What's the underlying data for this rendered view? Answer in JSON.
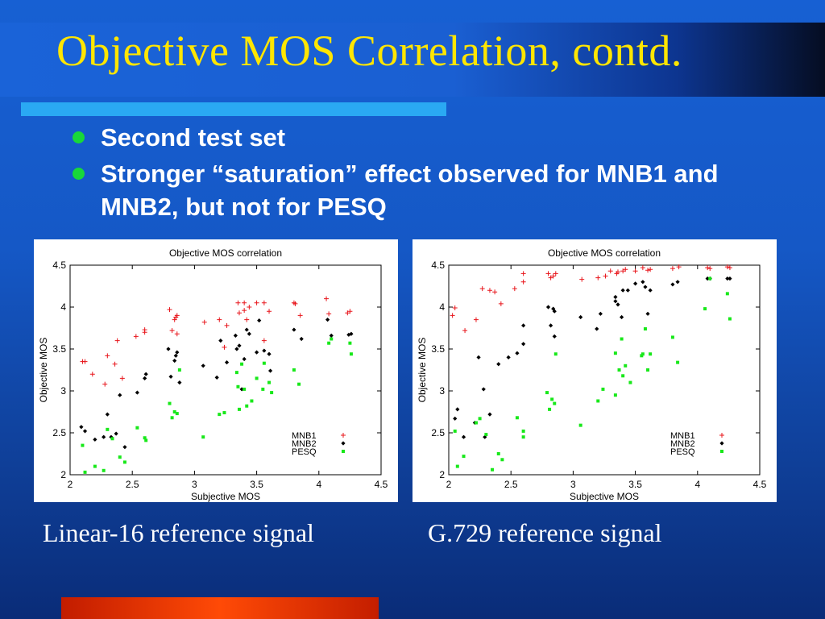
{
  "slide": {
    "title": "Objective MOS Correlation, contd.",
    "bullets": [
      "Second test set",
      "Stronger “saturation” effect observed for MNB1 and MNB2, but not for PESQ"
    ],
    "captions": [
      "Linear-16 reference signal",
      "G.729 reference signal"
    ],
    "colors": {
      "title": "#ffe600",
      "bullet_dot": "#18d83a",
      "rule": "#2aa9f3",
      "background": "#1558c6",
      "bottom_bar": "#ff4a06"
    }
  },
  "chart_data": [
    {
      "type": "scatter",
      "title": "Objective MOS correlation",
      "xlabel": "Subjective MOS",
      "ylabel": "Objective MOS",
      "xlim": [
        2,
        4.5
      ],
      "ylim": [
        2,
        4.5
      ],
      "xticks": [
        "2",
        "2.5",
        "3",
        "3.5",
        "4",
        "4.5"
      ],
      "yticks": [
        "2",
        "2.5",
        "3",
        "3.5",
        "4",
        "4.5"
      ],
      "legend_position": "bottom-right",
      "grid": false,
      "series": [
        {
          "name": "MNB1",
          "marker": "plus",
          "color": "#e8141a",
          "points": [
            [
              2.1,
              3.35
            ],
            [
              2.12,
              3.35
            ],
            [
              2.18,
              3.2
            ],
            [
              2.28,
              3.08
            ],
            [
              2.3,
              3.42
            ],
            [
              2.36,
              3.32
            ],
            [
              2.38,
              3.6
            ],
            [
              2.42,
              3.15
            ],
            [
              2.53,
              3.65
            ],
            [
              2.6,
              3.7
            ],
            [
              2.6,
              3.73
            ],
            [
              2.8,
              3.97
            ],
            [
              2.82,
              3.72
            ],
            [
              2.84,
              3.85
            ],
            [
              2.85,
              3.88
            ],
            [
              2.86,
              3.9
            ],
            [
              2.86,
              3.68
            ],
            [
              3.08,
              3.82
            ],
            [
              3.2,
              3.85
            ],
            [
              3.24,
              3.52
            ],
            [
              3.26,
              3.78
            ],
            [
              3.35,
              4.05
            ],
            [
              3.36,
              3.93
            ],
            [
              3.4,
              4.05
            ],
            [
              3.4,
              3.96
            ],
            [
              3.42,
              3.85
            ],
            [
              3.44,
              4
            ],
            [
              3.5,
              4.05
            ],
            [
              3.56,
              4.05
            ],
            [
              3.56,
              3.6
            ],
            [
              3.6,
              3.95
            ],
            [
              3.8,
              4.05
            ],
            [
              3.81,
              4.04
            ],
            [
              3.85,
              3.9
            ],
            [
              4.06,
              4.1
            ],
            [
              4.08,
              3.92
            ],
            [
              4.23,
              3.93
            ],
            [
              4.25,
              3.95
            ]
          ]
        },
        {
          "name": "MNB2",
          "marker": "diamond",
          "color": "#000000",
          "points": [
            [
              2.09,
              2.57
            ],
            [
              2.12,
              2.52
            ],
            [
              2.2,
              2.42
            ],
            [
              2.27,
              2.45
            ],
            [
              2.3,
              2.72
            ],
            [
              2.33,
              2.45
            ],
            [
              2.37,
              2.49
            ],
            [
              2.4,
              2.95
            ],
            [
              2.44,
              2.33
            ],
            [
              2.54,
              2.98
            ],
            [
              2.6,
              3.15
            ],
            [
              2.61,
              3.2
            ],
            [
              2.79,
              3.5
            ],
            [
              2.81,
              3.17
            ],
            [
              2.84,
              3.36
            ],
            [
              2.85,
              3.42
            ],
            [
              2.86,
              3.46
            ],
            [
              2.88,
              3.1
            ],
            [
              3.07,
              3.3
            ],
            [
              3.18,
              3.16
            ],
            [
              3.21,
              3.6
            ],
            [
              3.26,
              3.34
            ],
            [
              3.33,
              3.66
            ],
            [
              3.34,
              3.5
            ],
            [
              3.36,
              3.54
            ],
            [
              3.38,
              3.02
            ],
            [
              3.4,
              3.38
            ],
            [
              3.42,
              3.73
            ],
            [
              3.44,
              3.68
            ],
            [
              3.5,
              3.46
            ],
            [
              3.52,
              3.84
            ],
            [
              3.56,
              3.48
            ],
            [
              3.6,
              3.44
            ],
            [
              3.61,
              3.24
            ],
            [
              3.8,
              3.73
            ],
            [
              3.86,
              3.62
            ],
            [
              4.07,
              3.85
            ],
            [
              4.1,
              3.66
            ],
            [
              4.24,
              3.67
            ],
            [
              4.26,
              3.68
            ]
          ]
        },
        {
          "name": "PESQ",
          "marker": "square",
          "color": "#18e81a",
          "points": [
            [
              2.1,
              2.35
            ],
            [
              2.12,
              2.03
            ],
            [
              2.2,
              2.1
            ],
            [
              2.27,
              2.05
            ],
            [
              2.3,
              2.54
            ],
            [
              2.34,
              2.43
            ],
            [
              2.4,
              2.21
            ],
            [
              2.44,
              2.15
            ],
            [
              2.54,
              2.56
            ],
            [
              2.6,
              2.44
            ],
            [
              2.61,
              2.41
            ],
            [
              2.8,
              2.85
            ],
            [
              2.82,
              2.68
            ],
            [
              2.84,
              2.75
            ],
            [
              2.86,
              2.73
            ],
            [
              2.88,
              3.25
            ],
            [
              3.07,
              2.45
            ],
            [
              3.2,
              2.72
            ],
            [
              3.24,
              2.74
            ],
            [
              3.34,
              3.22
            ],
            [
              3.35,
              3.05
            ],
            [
              3.36,
              2.78
            ],
            [
              3.38,
              3.32
            ],
            [
              3.4,
              3.02
            ],
            [
              3.42,
              2.82
            ],
            [
              3.46,
              2.88
            ],
            [
              3.5,
              3.15
            ],
            [
              3.55,
              3.02
            ],
            [
              3.56,
              3.33
            ],
            [
              3.6,
              3.1
            ],
            [
              3.62,
              2.98
            ],
            [
              3.8,
              3.25
            ],
            [
              3.84,
              3.08
            ],
            [
              4.08,
              3.57
            ],
            [
              4.1,
              3.62
            ],
            [
              4.25,
              3.57
            ],
            [
              4.26,
              3.44
            ]
          ]
        }
      ]
    },
    {
      "type": "scatter",
      "title": "Objective MOS correlation",
      "xlabel": "Subjective MOS",
      "ylabel": "Objective MOS",
      "xlim": [
        2,
        4.5
      ],
      "ylim": [
        2,
        4.5
      ],
      "xticks": [
        "2",
        "2.5",
        "3",
        "3.5",
        "4",
        "4.5"
      ],
      "yticks": [
        "2",
        "2.5",
        "3",
        "3.5",
        "4",
        "4.5"
      ],
      "legend_position": "bottom-right",
      "grid": false,
      "series": [
        {
          "name": "MNB1",
          "marker": "plus",
          "color": "#e8141a",
          "points": [
            [
              2.03,
              3.9
            ],
            [
              2.05,
              3.99
            ],
            [
              2.13,
              3.72
            ],
            [
              2.22,
              3.85
            ],
            [
              2.27,
              4.22
            ],
            [
              2.33,
              4.2
            ],
            [
              2.37,
              4.18
            ],
            [
              2.42,
              4.04
            ],
            [
              2.53,
              4.22
            ],
            [
              2.6,
              4.3
            ],
            [
              2.6,
              4.4
            ],
            [
              2.8,
              4.4
            ],
            [
              2.82,
              4.35
            ],
            [
              2.84,
              4.37
            ],
            [
              2.86,
              4.4
            ],
            [
              3.07,
              4.33
            ],
            [
              3.2,
              4.35
            ],
            [
              3.26,
              4.37
            ],
            [
              3.3,
              4.43
            ],
            [
              3.35,
              4.4
            ],
            [
              3.36,
              4.42
            ],
            [
              3.4,
              4.43
            ],
            [
              3.42,
              4.45
            ],
            [
              3.5,
              4.43
            ],
            [
              3.56,
              4.47
            ],
            [
              3.6,
              4.44
            ],
            [
              3.62,
              4.45
            ],
            [
              3.8,
              4.46
            ],
            [
              3.85,
              4.48
            ],
            [
              4.08,
              4.47
            ],
            [
              4.1,
              4.46
            ],
            [
              4.24,
              4.48
            ],
            [
              4.26,
              4.47
            ]
          ]
        },
        {
          "name": "MNB2",
          "marker": "diamond",
          "color": "#000000",
          "points": [
            [
              2.05,
              2.67
            ],
            [
              2.07,
              2.78
            ],
            [
              2.12,
              2.45
            ],
            [
              2.21,
              2.62
            ],
            [
              2.24,
              3.4
            ],
            [
              2.28,
              3.02
            ],
            [
              2.29,
              2.45
            ],
            [
              2.33,
              2.72
            ],
            [
              2.4,
              3.32
            ],
            [
              2.48,
              3.4
            ],
            [
              2.55,
              3.45
            ],
            [
              2.6,
              3.78
            ],
            [
              2.6,
              3.56
            ],
            [
              2.8,
              4
            ],
            [
              2.82,
              3.78
            ],
            [
              2.84,
              3.98
            ],
            [
              2.85,
              3.95
            ],
            [
              2.85,
              3.65
            ],
            [
              3.06,
              3.88
            ],
            [
              3.19,
              3.74
            ],
            [
              3.22,
              3.92
            ],
            [
              3.34,
              4.12
            ],
            [
              3.34,
              4.07
            ],
            [
              3.36,
              4.03
            ],
            [
              3.39,
              3.88
            ],
            [
              3.4,
              4.2
            ],
            [
              3.44,
              4.2
            ],
            [
              3.5,
              4.28
            ],
            [
              3.56,
              4.3
            ],
            [
              3.58,
              4.24
            ],
            [
              3.6,
              3.92
            ],
            [
              3.62,
              4.2
            ],
            [
              3.8,
              4.27
            ],
            [
              3.84,
              4.3
            ],
            [
              4.08,
              4.34
            ],
            [
              4.1,
              4.34
            ],
            [
              4.24,
              4.34
            ],
            [
              4.26,
              4.34
            ]
          ]
        },
        {
          "name": "PESQ",
          "marker": "square",
          "color": "#18e81a",
          "points": [
            [
              2.05,
              2.52
            ],
            [
              2.07,
              2.1
            ],
            [
              2.12,
              2.22
            ],
            [
              2.22,
              2.62
            ],
            [
              2.25,
              2.67
            ],
            [
              2.3,
              2.48
            ],
            [
              2.35,
              2.06
            ],
            [
              2.4,
              2.25
            ],
            [
              2.43,
              2.18
            ],
            [
              2.55,
              2.68
            ],
            [
              2.6,
              2.52
            ],
            [
              2.6,
              2.45
            ],
            [
              2.79,
              2.98
            ],
            [
              2.81,
              2.78
            ],
            [
              2.83,
              2.9
            ],
            [
              2.85,
              2.85
            ],
            [
              2.86,
              3.44
            ],
            [
              3.06,
              2.59
            ],
            [
              3.2,
              2.88
            ],
            [
              3.24,
              3.02
            ],
            [
              3.34,
              3.45
            ],
            [
              3.34,
              2.95
            ],
            [
              3.37,
              3.25
            ],
            [
              3.39,
              3.62
            ],
            [
              3.4,
              3.18
            ],
            [
              3.42,
              3.3
            ],
            [
              3.46,
              3.1
            ],
            [
              3.55,
              3.42
            ],
            [
              3.56,
              3.44
            ],
            [
              3.58,
              3.74
            ],
            [
              3.6,
              3.25
            ],
            [
              3.62,
              3.44
            ],
            [
              3.8,
              3.64
            ],
            [
              3.84,
              3.34
            ],
            [
              4.06,
              3.98
            ],
            [
              4.1,
              4.34
            ],
            [
              4.24,
              4.16
            ],
            [
              4.26,
              3.86
            ]
          ]
        }
      ]
    }
  ]
}
